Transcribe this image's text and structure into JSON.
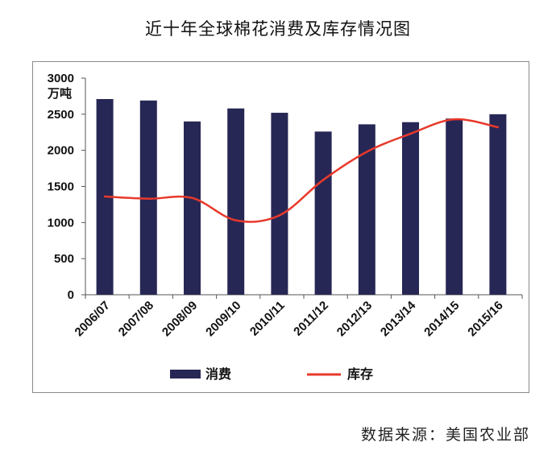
{
  "chart_data": {
    "type": "bar",
    "title": "近十年全球棉花消费及库存情况图",
    "unit_label": "万吨",
    "categories": [
      "2006/07",
      "2007/08",
      "2008/09",
      "2009/10",
      "2010/11",
      "2011/12",
      "2012/13",
      "2013/14",
      "2014/15",
      "2015/16"
    ],
    "series": [
      {
        "name": "消费",
        "type": "bar",
        "color": "#272755",
        "values": [
          2710,
          2690,
          2400,
          2580,
          2520,
          2260,
          2360,
          2390,
          2440,
          2500
        ]
      },
      {
        "name": "库存",
        "type": "line",
        "color": "#e8392b",
        "values": [
          1360,
          1330,
          1340,
          1030,
          1100,
          1590,
          1980,
          2230,
          2430,
          2320
        ]
      }
    ],
    "ylim": [
      0,
      3000
    ],
    "yticks": [
      0,
      500,
      1000,
      1500,
      2000,
      2500,
      3000
    ],
    "xlabel": "",
    "ylabel": "万吨",
    "legend_position": "bottom",
    "grid": false
  },
  "source_note": "数据来源：美国农业部"
}
